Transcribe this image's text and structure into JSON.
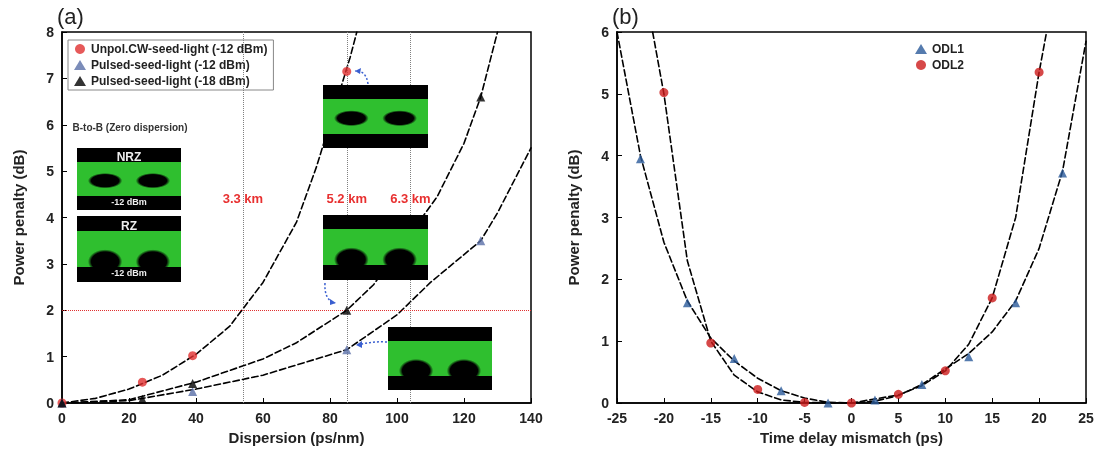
{
  "chart_data": [
    {
      "type": "scatter",
      "title": "(a)",
      "xlabel": "Dispersion (ps/nm)",
      "ylabel": "Power penalty (dB)",
      "xlim": [
        0,
        140
      ],
      "ylim": [
        0,
        8
      ],
      "xticks": [
        0,
        20,
        40,
        60,
        80,
        100,
        120,
        140
      ],
      "yticks": [
        0,
        1,
        2,
        3,
        4,
        5,
        6,
        7,
        8
      ],
      "grid": false,
      "legend": "top left",
      "series": [
        {
          "name": "Unpol.CW-seed-light (-12 dBm)",
          "color": "#e03030",
          "marker": "circle",
          "x": [
            0,
            24,
            39,
            85
          ],
          "values": [
            0,
            0.45,
            1.02,
            7.15
          ]
        },
        {
          "name": "Pulsed-seed-light (-12 dBm)",
          "color": "#5a6fa8",
          "marker": "triangle",
          "x": [
            0,
            24,
            39,
            85,
            125
          ],
          "values": [
            0,
            null,
            0.25,
            1.15,
            3.5
          ]
        },
        {
          "name": "Pulsed-seed-light (-18 dBm)",
          "color": "#000000",
          "marker": "triangle",
          "x": [
            0,
            24,
            39,
            85,
            125
          ],
          "values": [
            0,
            0.08,
            0.42,
            2.0,
            6.6
          ]
        },
        {
          "type": "line",
          "color": "#000000",
          "marker": "none",
          "line_style": "dashed",
          "x": [
            0,
            10,
            20,
            30,
            40,
            50,
            60,
            70,
            76,
            86,
            88
          ],
          "values": [
            0,
            0.1,
            0.3,
            0.6,
            1.05,
            1.65,
            2.6,
            3.9,
            5.1,
            7.45,
            8
          ]
        },
        {
          "type": "line",
          "color": "#000000",
          "marker": "none",
          "line_style": "dashed",
          "x": [
            0,
            20,
            40,
            60,
            70,
            85,
            93,
            112,
            120,
            125,
            130
          ],
          "values": [
            0,
            0.07,
            0.45,
            0.95,
            1.3,
            2.0,
            2.55,
            4.45,
            5.6,
            6.6,
            8
          ]
        },
        {
          "type": "line",
          "color": "#000000",
          "marker": "none",
          "line_style": "dashed",
          "x": [
            0,
            20,
            40,
            60,
            85,
            100,
            110,
            125,
            130,
            140
          ],
          "values": [
            0,
            0.05,
            0.3,
            0.6,
            1.15,
            1.9,
            2.6,
            3.5,
            4.1,
            5.5
          ]
        }
      ],
      "ref_lines": [
        {
          "axis": "x",
          "value": 54,
          "label": "3.3 km",
          "color": "#808080",
          "line_style": "dotted"
        },
        {
          "axis": "x",
          "value": 85,
          "label": "5.2 km",
          "color": "#808080",
          "line_style": "dotted"
        },
        {
          "axis": "x",
          "value": 104,
          "label": "6.3 km",
          "color": "#808080",
          "line_style": "dotted"
        },
        {
          "axis": "y",
          "value": 2,
          "color": "#e03030",
          "line_style": "dotted"
        }
      ],
      "annotations": [
        "B-to-B (Zero dispersion)",
        "NRZ",
        "-12 dBm",
        "RZ",
        "-12 dBm"
      ]
    },
    {
      "type": "scatter",
      "title": "(b)",
      "xlabel": "Time delay mismatch (ps)",
      "ylabel": "Power penalty (dB)",
      "xlim": [
        -25,
        25
      ],
      "ylim": [
        0,
        6
      ],
      "xticks": [
        -25,
        -20,
        -15,
        -10,
        -5,
        0,
        5,
        10,
        15,
        20,
        25
      ],
      "yticks": [
        0,
        1,
        2,
        3,
        4,
        5,
        6
      ],
      "grid": false,
      "legend": "top right",
      "series": [
        {
          "name": "ODL1",
          "color": "#2a5a9a",
          "marker": "triangle",
          "x": [
            -22.5,
            -17.5,
            -12.5,
            -7.5,
            -2.5,
            2.5,
            7.5,
            12.5,
            17.5,
            22.5
          ],
          "values": [
            3.95,
            1.62,
            0.72,
            0.2,
            0,
            0.05,
            0.3,
            0.75,
            1.62,
            3.72
          ]
        },
        {
          "name": "ODL2",
          "color": "#cc1a1a",
          "marker": "circle",
          "x": [
            -20,
            -15,
            -10,
            -5,
            0,
            5,
            10,
            15,
            20
          ],
          "values": [
            5.02,
            0.97,
            0.22,
            0.01,
            0,
            0.14,
            0.52,
            1.7,
            5.35
          ]
        },
        {
          "type": "line",
          "color": "#000000",
          "marker": "none",
          "line_style": "dashed",
          "x": [
            -25,
            -22.5,
            -20,
            -17.5,
            -15,
            -12.5,
            -10,
            -7.5,
            -5,
            -2.5,
            0,
            2.5,
            5,
            7.5,
            10,
            12.5,
            15,
            17.5,
            20,
            22.5,
            25
          ],
          "values": [
            6,
            4,
            2.6,
            1.65,
            1.05,
            0.68,
            0.4,
            0.2,
            0.08,
            0.01,
            0,
            0.03,
            0.12,
            0.3,
            0.55,
            0.8,
            1.15,
            1.65,
            2.5,
            3.75,
            5.85
          ]
        },
        {
          "type": "line",
          "color": "#000000",
          "marker": "none",
          "line_style": "dashed",
          "x": [
            -21.2,
            -20,
            -17.5,
            -15,
            -12.5,
            -10,
            -7.5,
            -5,
            0,
            5,
            7.5,
            10,
            12.5,
            15,
            17.5,
            20,
            20.8
          ],
          "values": [
            6,
            5,
            2.3,
            1.0,
            0.45,
            0.18,
            0.05,
            0.01,
            0,
            0.13,
            0.28,
            0.52,
            0.95,
            1.7,
            3.0,
            5.35,
            6
          ]
        }
      ]
    }
  ]
}
